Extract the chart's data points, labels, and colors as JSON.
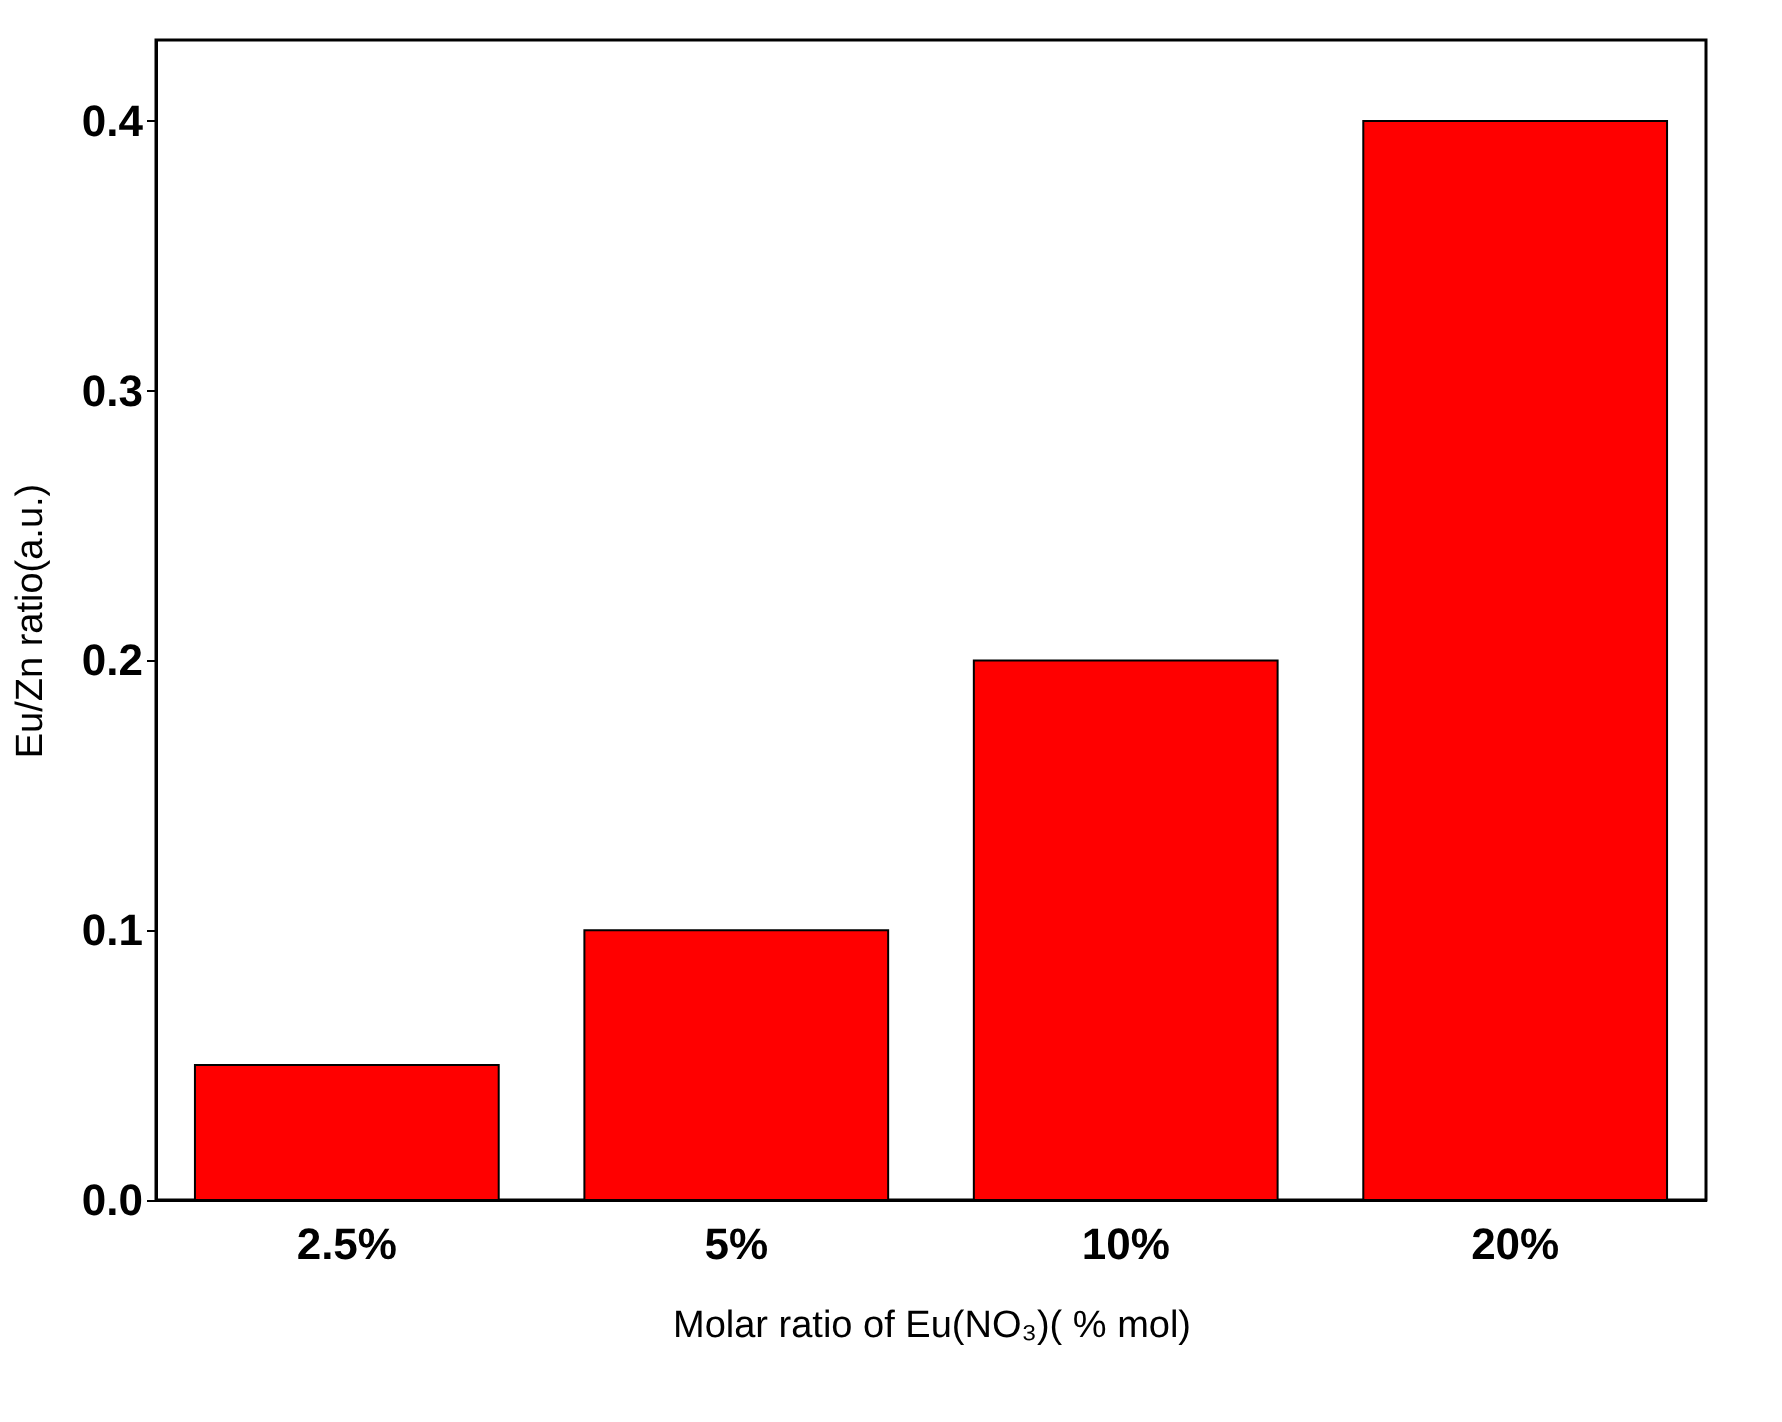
{
  "chart_data": {
    "type": "bar",
    "xlabel": "Molar ratio of Eu(NO₃)( % mol)",
    "ylabel": "Eu/Zn ratio(a.u.)",
    "categories": [
      "2.5%",
      "5%",
      "10%",
      "20%"
    ],
    "values": [
      0.05,
      0.1,
      0.2,
      0.4
    ],
    "color": "#ff0000",
    "ylim": [
      0,
      0.43
    ],
    "yticks": [
      {
        "value": 0,
        "label": "0.0"
      },
      {
        "value": 0.1,
        "label": "0.1"
      },
      {
        "value": 0.2,
        "label": "0.2"
      },
      {
        "value": 0.3,
        "label": "0.3"
      },
      {
        "value": 0.4,
        "label": "0.4"
      }
    ],
    "grid": false
  }
}
